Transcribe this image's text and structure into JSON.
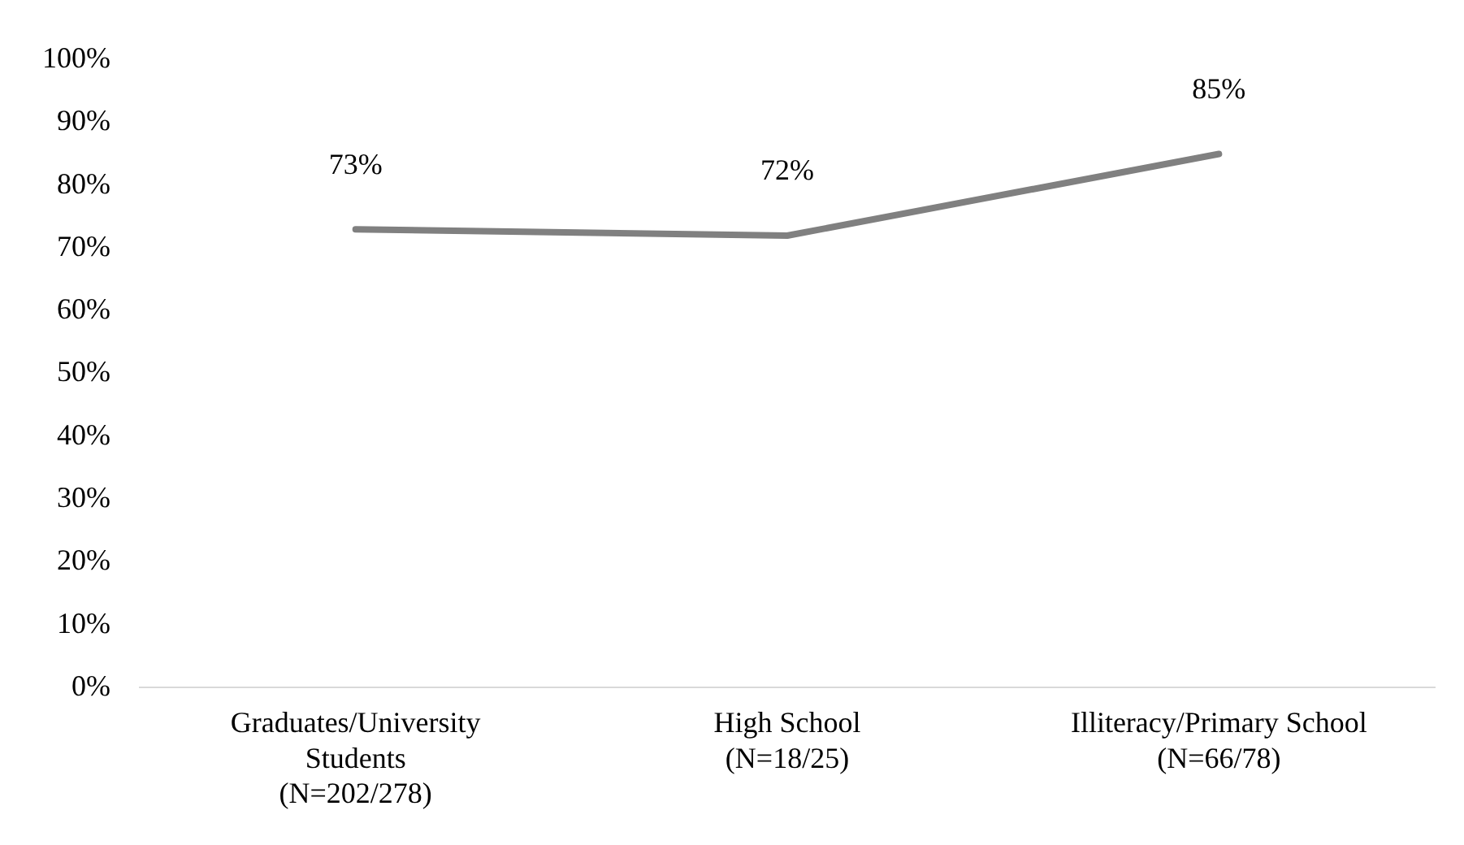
{
  "chart_data": {
    "type": "line",
    "categories": [
      "Graduates/University\nStudents\n(N=202/278)",
      "High School\n(N=18/25)",
      "Illiteracy/Primary School\n(N=66/78)"
    ],
    "series": [
      {
        "color": "#808080",
        "values": [
          73,
          72,
          85
        ],
        "value_labels": [
          "73%",
          "72%",
          "85%"
        ]
      }
    ],
    "ylim": [
      0,
      100
    ],
    "yticks": [
      {
        "value": 0,
        "label": "0%"
      },
      {
        "value": 10,
        "label": "10%"
      },
      {
        "value": 20,
        "label": "20%"
      },
      {
        "value": 30,
        "label": "30%"
      },
      {
        "value": 40,
        "label": "40%"
      },
      {
        "value": 50,
        "label": "50%"
      },
      {
        "value": 60,
        "label": "60%"
      },
      {
        "value": 70,
        "label": "70%"
      },
      {
        "value": 80,
        "label": "80%"
      },
      {
        "value": 90,
        "label": "90%"
      },
      {
        "value": 100,
        "label": "100%"
      }
    ],
    "grid": false,
    "legend": false,
    "marker": "none",
    "line_style": "solid"
  }
}
